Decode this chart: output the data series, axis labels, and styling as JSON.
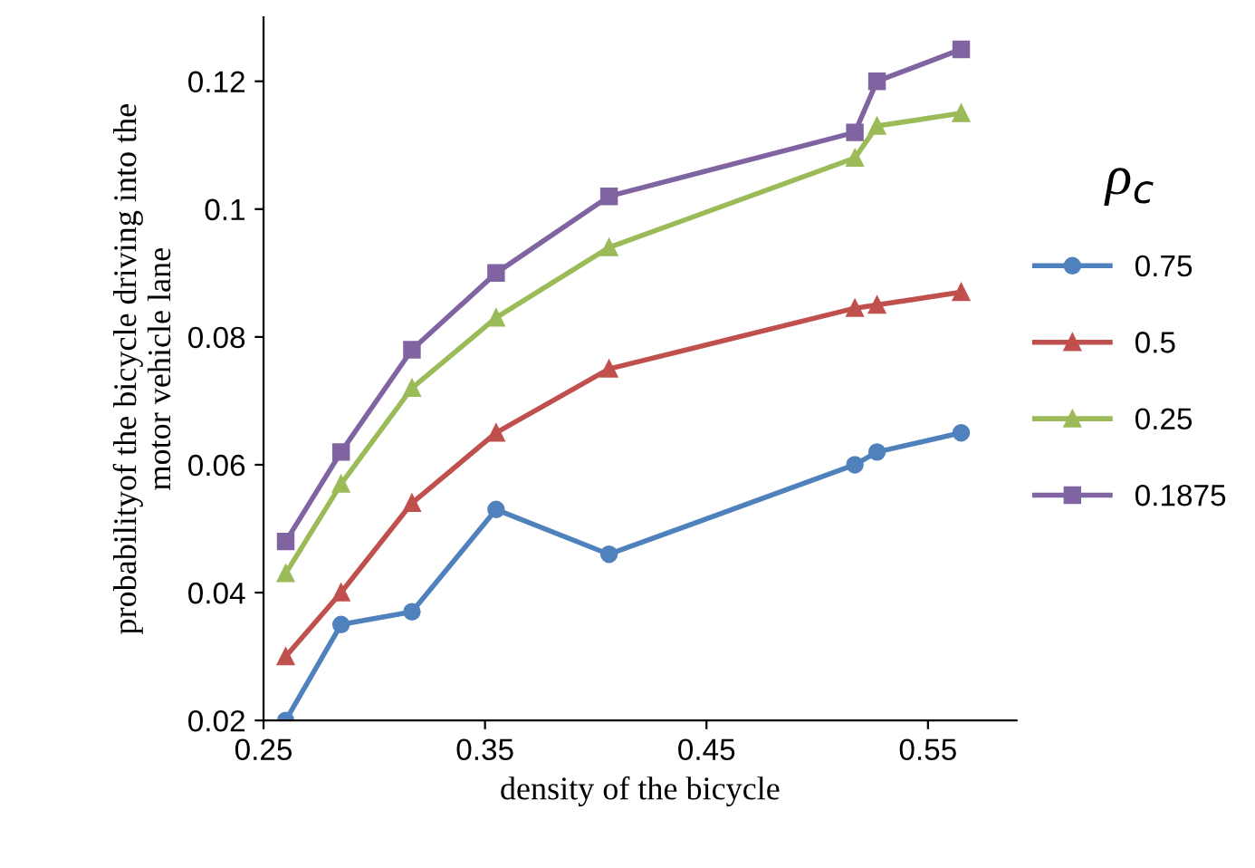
{
  "chart_data": {
    "type": "line",
    "xlabel": "density of the bicycle",
    "ylabel": "probabilityof the bicycle driving into the\nmotor vehicle lane",
    "legend_title": "ρ$_{c}$",
    "x": [
      0.26,
      0.285,
      0.317,
      0.355,
      0.406,
      0.517,
      0.527,
      0.565
    ],
    "series": [
      {
        "name": "0.75",
        "color": "#4f81bd",
        "marker": "circle",
        "values": [
          0.02,
          0.035,
          0.037,
          0.053,
          0.046,
          0.06,
          0.062,
          0.065
        ]
      },
      {
        "name": "0.5",
        "color": "#c0504d",
        "marker": "triangle",
        "values": [
          0.03,
          0.04,
          0.054,
          0.065,
          0.075,
          0.0845,
          0.085,
          0.087
        ]
      },
      {
        "name": "0.25",
        "color": "#9bbb59",
        "marker": "triangle",
        "values": [
          0.043,
          0.057,
          0.072,
          0.083,
          0.094,
          0.108,
          0.113,
          0.115
        ]
      },
      {
        "name": "0.1875",
        "color": "#8064a2",
        "marker": "square",
        "values": [
          0.048,
          0.062,
          0.078,
          0.09,
          0.102,
          0.112,
          0.12,
          0.125
        ]
      }
    ],
    "xlim": [
      0.25,
      0.59
    ],
    "xticks": [
      0.25,
      0.35,
      0.45,
      0.55
    ],
    "ylim": [
      0.02,
      0.13
    ],
    "yticks": [
      0.02,
      0.04,
      0.06,
      0.08,
      0.1,
      0.12
    ],
    "grid": false,
    "legend": "right",
    "line_style": "solid"
  }
}
